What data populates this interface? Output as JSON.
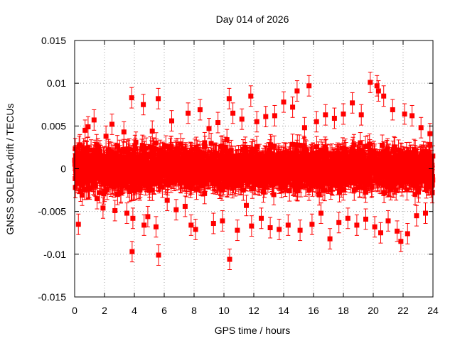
{
  "chart_data": {
    "type": "scatter",
    "title": "Day 014 of 2026",
    "xlabel": "GPS time / hours",
    "ylabel": "GNSS SOLERA-drift / TECUs",
    "xlim": [
      0,
      24
    ],
    "ylim": [
      -0.015,
      0.015
    ],
    "x_ticks": [
      0,
      2,
      4,
      6,
      8,
      10,
      12,
      14,
      16,
      18,
      20,
      22,
      24
    ],
    "x_tick_labels": [
      "0",
      "2",
      "4",
      "6",
      "8",
      "10",
      "12",
      "14",
      "16",
      "18",
      "20",
      "22",
      "24"
    ],
    "y_ticks": [
      -0.015,
      -0.01,
      -0.005,
      0,
      0.005,
      0.01,
      0.015
    ],
    "y_tick_labels": [
      "-0.015",
      "-0.01",
      "-0.005",
      "0",
      "0.005",
      "0.01",
      "0.015"
    ],
    "grid": true,
    "color": "#ff0000",
    "error_bar_half_width": 0.0012,
    "series": [
      {
        "style": "points-with-errorbars",
        "points": [
          [
            0.05,
            -0.0022
          ],
          [
            0.15,
            0.0011
          ],
          [
            0.25,
            -0.0065
          ],
          [
            0.35,
            0.0028
          ],
          [
            0.5,
            -0.0031
          ],
          [
            0.7,
            0.0045
          ],
          [
            0.9,
            0.0049
          ],
          [
            1.1,
            -0.0009
          ],
          [
            1.3,
            0.0057
          ],
          [
            1.5,
            -0.0035
          ],
          [
            1.7,
            0.0021
          ],
          [
            1.9,
            -0.0046
          ],
          [
            2.1,
            0.0038
          ],
          [
            2.3,
            -0.0018
          ],
          [
            2.5,
            0.0052
          ],
          [
            2.7,
            -0.0049
          ],
          [
            2.9,
            0.0014
          ],
          [
            3.1,
            -0.0027
          ],
          [
            3.3,
            0.0043
          ],
          [
            3.5,
            -0.0052
          ],
          [
            3.82,
            0.0083
          ],
          [
            3.85,
            -0.0097
          ],
          [
            3.9,
            -0.0058
          ],
          [
            4.1,
            0.0031
          ],
          [
            4.3,
            -0.0023
          ],
          [
            4.6,
            0.0075
          ],
          [
            4.65,
            -0.0066
          ],
          [
            4.9,
            -0.0056
          ],
          [
            5.2,
            0.0044
          ],
          [
            5.45,
            -0.0068
          ],
          [
            5.6,
            0.0082
          ],
          [
            5.62,
            -0.0101
          ],
          [
            5.9,
            0.0019
          ],
          [
            6.2,
            -0.0037
          ],
          [
            6.5,
            0.0056
          ],
          [
            6.8,
            -0.0048
          ],
          [
            7.1,
            0.0029
          ],
          [
            7.4,
            -0.0044
          ],
          [
            7.6,
            0.0065
          ],
          [
            7.8,
            -0.0066
          ],
          [
            8.1,
            -0.0071
          ],
          [
            8.4,
            0.0069
          ],
          [
            8.7,
            -0.0029
          ],
          [
            9.0,
            0.0047
          ],
          [
            9.3,
            -0.0064
          ],
          [
            9.6,
            0.0054
          ],
          [
            9.9,
            -0.0061
          ],
          [
            10.2,
            0.0034
          ],
          [
            10.35,
            0.0082
          ],
          [
            10.38,
            -0.0106
          ],
          [
            10.6,
            0.0065
          ],
          [
            10.9,
            -0.0072
          ],
          [
            11.2,
            0.0058
          ],
          [
            11.5,
            -0.0043
          ],
          [
            11.8,
            0.0085
          ],
          [
            11.85,
            -0.0067
          ],
          [
            12.2,
            0.0055
          ],
          [
            12.5,
            -0.0058
          ],
          [
            12.8,
            0.0061
          ],
          [
            13.1,
            -0.0069
          ],
          [
            13.4,
            0.0062
          ],
          [
            13.7,
            -0.0071
          ],
          [
            14.0,
            0.0078
          ],
          [
            14.3,
            -0.0066
          ],
          [
            14.6,
            0.0072
          ],
          [
            14.9,
            0.0091
          ],
          [
            15.1,
            -0.0072
          ],
          [
            15.4,
            0.0048
          ],
          [
            15.7,
            0.0097
          ],
          [
            15.9,
            -0.0065
          ],
          [
            16.2,
            0.0055
          ],
          [
            16.5,
            -0.0052
          ],
          [
            16.8,
            0.0063
          ],
          [
            17.1,
            -0.0082
          ],
          [
            17.4,
            0.0059
          ],
          [
            17.7,
            -0.0063
          ],
          [
            18.0,
            0.0064
          ],
          [
            18.3,
            -0.0058
          ],
          [
            18.6,
            0.0077
          ],
          [
            18.9,
            -0.0066
          ],
          [
            19.2,
            0.0063
          ],
          [
            19.5,
            -0.0059
          ],
          [
            19.8,
            0.0101
          ],
          [
            20.1,
            -0.0068
          ],
          [
            20.25,
            0.0097
          ],
          [
            20.35,
            0.0091
          ],
          [
            20.5,
            -0.0075
          ],
          [
            20.7,
            0.0085
          ],
          [
            21.0,
            -0.0061
          ],
          [
            21.3,
            0.0069
          ],
          [
            21.6,
            -0.0073
          ],
          [
            21.85,
            -0.0085
          ],
          [
            22.1,
            0.0064
          ],
          [
            22.3,
            -0.0076
          ],
          [
            22.6,
            0.0062
          ],
          [
            22.9,
            -0.0055
          ],
          [
            23.2,
            0.0048
          ],
          [
            23.5,
            -0.0052
          ],
          [
            23.8,
            0.0041
          ],
          [
            23.95,
            -0.0028
          ]
        ]
      }
    ],
    "dense_band": {
      "lower": -0.0035,
      "upper": 0.0035,
      "points_per_hour": 100
    }
  }
}
